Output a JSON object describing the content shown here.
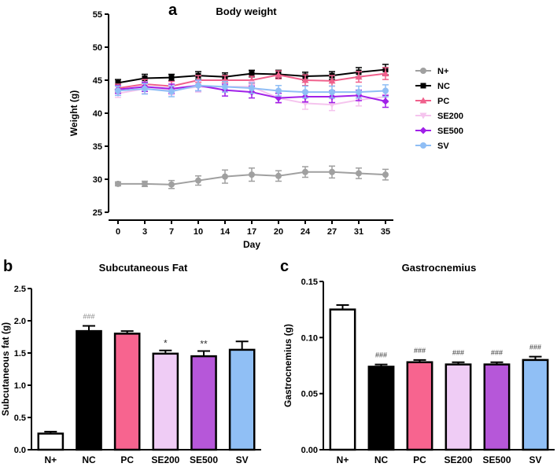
{
  "chart_data": [
    {
      "panel": "a",
      "type": "line",
      "title": "Body weight",
      "xlabel": "Day",
      "ylabel": "Weight (g)",
      "ylim": [
        25,
        55
      ],
      "yticks": [
        "25",
        "30",
        "35",
        "40",
        "45",
        "50",
        "55"
      ],
      "categories": [
        "0",
        "3",
        "7",
        "10",
        "14",
        "17",
        "20",
        "24",
        "27",
        "31",
        "35"
      ],
      "legend_position": "right",
      "series": [
        {
          "name": "N+",
          "color": "#a0a0a0",
          "marker": "circle",
          "values": [
            29.3,
            29.3,
            29.2,
            29.8,
            30.4,
            30.7,
            30.5,
            31.1,
            31.1,
            30.9,
            30.7
          ],
          "errors": [
            0.3,
            0.4,
            0.6,
            0.7,
            1.0,
            1.0,
            0.8,
            0.8,
            0.9,
            0.8,
            0.8
          ]
        },
        {
          "name": "NC",
          "color": "#000000",
          "marker": "square",
          "values": [
            44.6,
            45.3,
            45.4,
            45.7,
            45.5,
            46.0,
            45.9,
            45.6,
            45.7,
            46.2,
            46.6
          ],
          "errors": [
            0.5,
            0.6,
            0.5,
            0.6,
            0.6,
            0.5,
            0.6,
            0.6,
            0.6,
            0.7,
            0.8
          ]
        },
        {
          "name": "PC",
          "color": "#f0608c",
          "marker": "triangle",
          "values": [
            43.8,
            44.4,
            44.1,
            45.0,
            45.0,
            45.0,
            45.8,
            45.0,
            44.9,
            45.5,
            46.0
          ],
          "errors": [
            0.6,
            0.7,
            0.7,
            0.7,
            0.7,
            0.6,
            0.6,
            0.8,
            0.8,
            0.8,
            0.9
          ]
        },
        {
          "name": "SE200",
          "color": "#f5c4ee",
          "marker": "triangle-down",
          "values": [
            43.0,
            43.7,
            43.5,
            44.0,
            44.0,
            44.0,
            42.3,
            41.5,
            41.3,
            42.0,
            42.5
          ],
          "errors": [
            0.6,
            0.7,
            0.7,
            0.8,
            0.8,
            0.8,
            0.8,
            0.9,
            0.9,
            0.9,
            0.9
          ]
        },
        {
          "name": "SE500",
          "color": "#a020e8",
          "marker": "diamond",
          "values": [
            43.6,
            44.0,
            43.7,
            44.2,
            43.5,
            43.2,
            42.3,
            42.5,
            42.5,
            42.7,
            41.8
          ],
          "errors": [
            0.6,
            0.7,
            0.7,
            0.8,
            0.9,
            0.9,
            0.7,
            0.8,
            0.9,
            0.8,
            0.9
          ]
        },
        {
          "name": "SV",
          "color": "#8fbef5",
          "marker": "circle",
          "values": [
            43.4,
            43.7,
            43.3,
            44.2,
            44.0,
            43.8,
            43.4,
            43.2,
            43.2,
            43.2,
            43.4
          ],
          "errors": [
            0.7,
            0.8,
            0.8,
            0.8,
            0.8,
            0.8,
            0.8,
            0.9,
            0.9,
            0.9,
            0.9
          ]
        }
      ]
    },
    {
      "panel": "b",
      "type": "bar",
      "title": "Subcutaneous Fat",
      "xlabel": "",
      "ylabel": "Subcutaneous fat (g)",
      "ylim": [
        0,
        2.5
      ],
      "yticks": [
        "0.0",
        "0.5",
        "1.0",
        "1.5",
        "2.0",
        "2.5"
      ],
      "categories": [
        "N+",
        "NC",
        "PC",
        "SE200",
        "SE500",
        "SV"
      ],
      "values": [
        0.25,
        1.84,
        1.8,
        1.49,
        1.45,
        1.55
      ],
      "errors": [
        0.03,
        0.08,
        0.04,
        0.05,
        0.08,
        0.13
      ],
      "colors": [
        "#ffffff",
        "#000000",
        "#f7648f",
        "#efccf5",
        "#b657d9",
        "#90bff5"
      ],
      "annotations": [
        "",
        "###",
        "",
        "*",
        "**",
        ""
      ]
    },
    {
      "panel": "c",
      "type": "bar",
      "title": "Gastrocnemius",
      "xlabel": "",
      "ylabel": "Gastrocnemius (g)",
      "ylim": [
        0,
        0.15
      ],
      "yticks": [
        "0.00",
        "0.05",
        "0.10",
        "0.15"
      ],
      "categories": [
        "N+",
        "NC",
        "PC",
        "SE200",
        "SE500",
        "SV"
      ],
      "values": [
        0.125,
        0.074,
        0.078,
        0.076,
        0.076,
        0.08
      ],
      "errors": [
        0.004,
        0.002,
        0.002,
        0.002,
        0.002,
        0.003
      ],
      "colors": [
        "#ffffff",
        "#000000",
        "#f7648f",
        "#efccf5",
        "#b657d9",
        "#90bff5"
      ],
      "annotations": [
        "",
        "###",
        "###",
        "###",
        "###",
        "###"
      ]
    }
  ]
}
